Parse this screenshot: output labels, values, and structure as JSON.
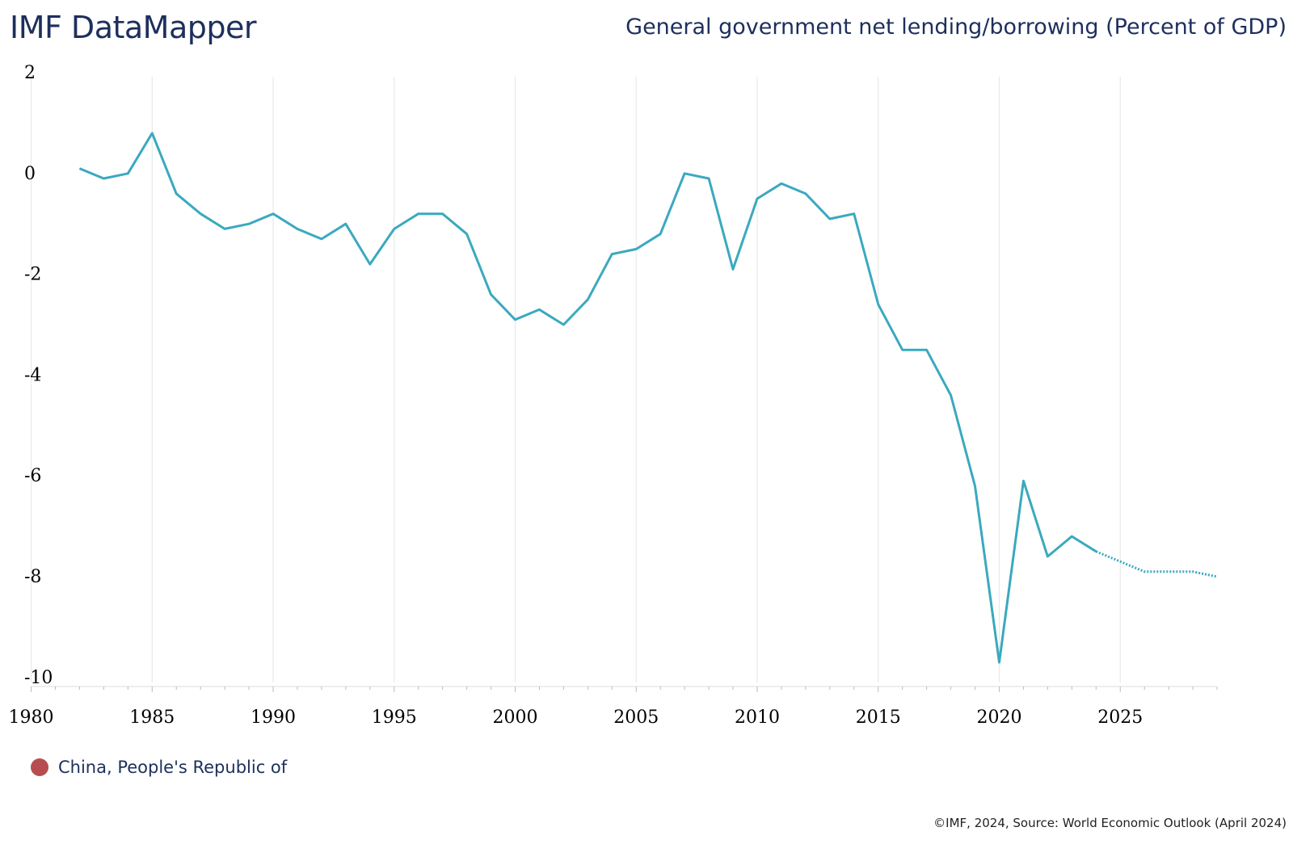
{
  "header": {
    "brand": "IMF DataMapper",
    "title": "General government net lending/borrowing (Percent of GDP)"
  },
  "footer": {
    "source": "©IMF, 2024, Source: World Economic Outlook (April 2024)"
  },
  "legend": {
    "items": [
      {
        "label": "China, People's Republic of",
        "color": "#b84d4f"
      }
    ]
  },
  "colors": {
    "line": "#3aa9bf",
    "grid": "#e6e6e6"
  },
  "chart_data": {
    "type": "line",
    "title": "General government net lending/borrowing (Percent of GDP)",
    "xlabel": "",
    "ylabel": "",
    "xlim": [
      1980,
      2029
    ],
    "ylim": [
      -10,
      2
    ],
    "x_ticks": [
      1980,
      1985,
      1990,
      1995,
      2000,
      2005,
      2010,
      2015,
      2020,
      2025
    ],
    "y_ticks": [
      2,
      0,
      -2,
      -4,
      -6,
      -8,
      -10
    ],
    "grid": "vertical",
    "legend_position": "bottom-left",
    "projection_start": 2024,
    "series": [
      {
        "name": "China, People's Republic of",
        "x": [
          1982,
          1983,
          1984,
          1985,
          1986,
          1987,
          1988,
          1989,
          1990,
          1991,
          1992,
          1993,
          1994,
          1995,
          1996,
          1997,
          1998,
          1999,
          2000,
          2001,
          2002,
          2003,
          2004,
          2005,
          2006,
          2007,
          2008,
          2009,
          2010,
          2011,
          2012,
          2013,
          2014,
          2015,
          2016,
          2017,
          2018,
          2019,
          2020,
          2021,
          2022,
          2023,
          2024,
          2025,
          2026,
          2027,
          2028,
          2029
        ],
        "values": [
          0.1,
          -0.1,
          0.0,
          0.8,
          -0.4,
          -0.8,
          -1.1,
          -1.0,
          -0.8,
          -1.1,
          -1.3,
          -1.0,
          -1.8,
          -1.1,
          -0.8,
          -0.8,
          -1.2,
          -2.4,
          -2.9,
          -2.7,
          -3.0,
          -2.5,
          -1.6,
          -1.5,
          -1.2,
          0.0,
          -0.1,
          -1.9,
          -0.5,
          -0.2,
          -0.4,
          -0.9,
          -0.8,
          -2.6,
          -3.5,
          -3.5,
          -4.4,
          -6.2,
          -9.7,
          -6.1,
          -7.6,
          -7.2,
          -7.5,
          -7.7,
          -7.9,
          -7.9,
          -7.9,
          -8.0
        ]
      }
    ]
  }
}
